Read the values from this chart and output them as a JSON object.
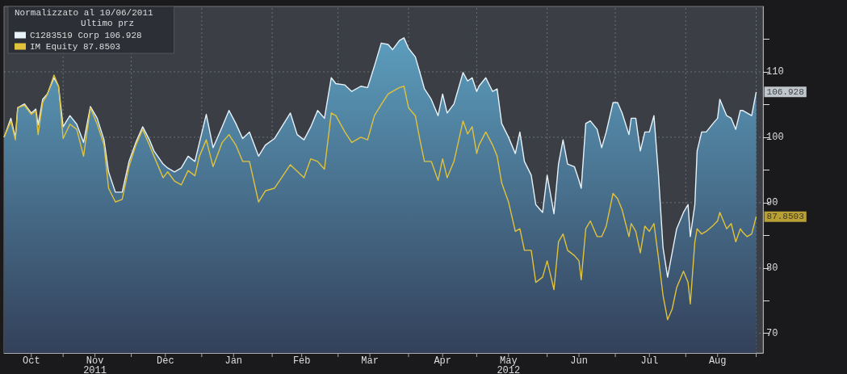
{
  "chart_data": {
    "type": "area",
    "legend_title": "Normalizzato al 10/06/2011",
    "subtitle": "Ultimo prz",
    "legend": "top left",
    "grid": true,
    "x": [
      "2011-10-06",
      "2011-10-09",
      "2011-10-11",
      "2011-10-12",
      "2011-10-15",
      "2011-10-18",
      "2011-10-20",
      "2011-10-21",
      "2011-10-23",
      "2011-10-25",
      "2011-10-28",
      "2011-10-30",
      "2011-11-01",
      "2011-11-04",
      "2011-11-07",
      "2011-11-10",
      "2011-11-13",
      "2011-11-16",
      "2011-11-19",
      "2011-11-21",
      "2011-11-24",
      "2011-11-27",
      "2011-11-30",
      "2011-12-03",
      "2011-12-06",
      "2011-12-09",
      "2011-12-11",
      "2011-12-15",
      "2011-12-17",
      "2011-12-20",
      "2011-12-23",
      "2011-12-26",
      "2011-12-29",
      "2011-12-31",
      "2012-01-03",
      "2012-01-06",
      "2012-01-10",
      "2012-01-13",
      "2012-01-16",
      "2012-01-19",
      "2012-01-22",
      "2012-01-26",
      "2012-01-29",
      "2012-02-02",
      "2012-02-09",
      "2012-02-12",
      "2012-02-15",
      "2012-02-18",
      "2012-02-21",
      "2012-02-24",
      "2012-02-27",
      "2012-02-29",
      "2012-03-04",
      "2012-03-07",
      "2012-03-11",
      "2012-03-14",
      "2012-03-17",
      "2012-03-20",
      "2012-03-23",
      "2012-03-25",
      "2012-03-28",
      "2012-03-30",
      "2012-04-01",
      "2012-04-04",
      "2012-04-06",
      "2012-04-08",
      "2012-04-11",
      "2012-04-14",
      "2012-04-16",
      "2012-04-18",
      "2012-04-21",
      "2012-04-25",
      "2012-04-27",
      "2012-04-29",
      "2012-05-01",
      "2012-05-02",
      "2012-05-05",
      "2012-05-08",
      "2012-05-10",
      "2012-05-12",
      "2012-05-15",
      "2012-05-18",
      "2012-05-20",
      "2012-05-22",
      "2012-05-25",
      "2012-05-27",
      "2012-05-30",
      "2012-06-01",
      "2012-06-04",
      "2012-06-06",
      "2012-06-08",
      "2012-06-10",
      "2012-06-13",
      "2012-06-15",
      "2012-06-16",
      "2012-06-18",
      "2012-06-20",
      "2012-06-23",
      "2012-06-25",
      "2012-06-27",
      "2012-06-30",
      "2012-07-02",
      "2012-07-04",
      "2012-07-07",
      "2012-07-08",
      "2012-07-10",
      "2012-07-12",
      "2012-07-14",
      "2012-07-16",
      "2012-07-18",
      "2012-07-20",
      "2012-07-22",
      "2012-07-24",
      "2012-07-26",
      "2012-07-28",
      "2012-07-31",
      "2012-08-02",
      "2012-08-03",
      "2012-08-05",
      "2012-08-06",
      "2012-08-08",
      "2012-08-10",
      "2012-08-13",
      "2012-08-15",
      "2012-08-16",
      "2012-08-19",
      "2012-08-21",
      "2012-08-23",
      "2012-08-25",
      "2012-08-26",
      "2012-08-28",
      "2012-08-30",
      "2012-09-01"
    ],
    "series": [
      {
        "name": "C1283519 Corp 106.928",
        "color": "#e8f2fa",
        "values": [
          100,
          102.9,
          100,
          104.5,
          105.1,
          103.7,
          104.3,
          101.9,
          105.8,
          106.6,
          109.1,
          107.8,
          101.6,
          103.3,
          102,
          99.2,
          104.7,
          102.9,
          99.6,
          94.7,
          91.6,
          91.6,
          96.3,
          99.2,
          101.6,
          99.6,
          97.9,
          95.9,
          95.3,
          94.7,
          95.3,
          97.1,
          96.3,
          99.2,
          103.5,
          98.4,
          101.6,
          104.1,
          102.1,
          99.8,
          100.8,
          97.1,
          98.8,
          99.8,
          103.7,
          100.4,
          99.6,
          101.6,
          104.1,
          102.9,
          109.1,
          108.2,
          108,
          107,
          107.8,
          107.6,
          110.9,
          114.4,
          114.2,
          113.4,
          114.8,
          115.2,
          113.6,
          112.3,
          109.9,
          107.4,
          105.8,
          103.3,
          106.6,
          103.7,
          105.1,
          109.9,
          108.6,
          109.1,
          107,
          107.8,
          109.1,
          107,
          107.4,
          102.1,
          100,
          97.5,
          100.8,
          96.3,
          94.2,
          89.7,
          88.5,
          94.2,
          88.3,
          95.9,
          99.6,
          95.9,
          95.5,
          93.4,
          92.2,
          102.1,
          102.5,
          101.2,
          98.4,
          100.8,
          105.3,
          105.3,
          103.7,
          100.4,
          102.9,
          102.9,
          97.9,
          100.8,
          100.8,
          103.3,
          94.2,
          83.1,
          78.6,
          82.3,
          86,
          88.5,
          89.7,
          84.8,
          89.7,
          97.9,
          100.8,
          100.8,
          102.1,
          102.9,
          105.8,
          103.3,
          102.9,
          101.2,
          104.1,
          104.1,
          103.7,
          103.3,
          106.928
        ]
      },
      {
        "name": "IM Equity 87.8503",
        "type": "line",
        "color": "#e0c23c",
        "values": [
          100,
          102.5,
          99.6,
          104.5,
          104.9,
          103.5,
          104,
          100.4,
          105.3,
          106.5,
          109.5,
          107.8,
          99.8,
          102,
          101.2,
          97.1,
          104.5,
          102,
          98.8,
          92.2,
          90.1,
          90.5,
          95.5,
          98.8,
          101.2,
          98.8,
          97.1,
          93.8,
          94.7,
          93.3,
          92.7,
          94.9,
          94.1,
          97.1,
          99.6,
          95.5,
          99.2,
          100.4,
          98.8,
          96.3,
          96.3,
          90.1,
          91.8,
          92.2,
          95.8,
          94.8,
          93.8,
          96.7,
          96.3,
          95.1,
          103.7,
          103.3,
          100.8,
          99.2,
          100,
          99.6,
          103.3,
          105,
          106.6,
          107,
          107.6,
          107.8,
          104.5,
          103.3,
          99.6,
          96.3,
          96.3,
          93.4,
          96.7,
          93.8,
          96.3,
          102.5,
          100.5,
          101.6,
          97.5,
          98.8,
          100.8,
          98.8,
          97.1,
          93,
          90.1,
          85.6,
          86,
          82.7,
          82.7,
          77.8,
          78.6,
          81.1,
          76.7,
          84,
          85.2,
          82.7,
          81.9,
          81.1,
          78.2,
          86,
          87.2,
          84.8,
          84.8,
          86.4,
          91.4,
          90.6,
          88.9,
          84.8,
          86.8,
          85.6,
          82.3,
          86.4,
          85.6,
          86.8,
          81.5,
          75.8,
          72.1,
          73.7,
          77,
          79.5,
          77.8,
          74.5,
          84,
          86,
          85.2,
          85.6,
          86.5,
          87.2,
          88.5,
          86,
          86.8,
          84,
          86,
          85.5,
          84.8,
          85.2,
          87.8503
        ]
      }
    ],
    "annotations": [
      {
        "text": "106.928",
        "x": "2012-09-01",
        "y": 106.928
      },
      {
        "text": "87.8503",
        "x": "2012-09-01",
        "y": 87.8503
      }
    ],
    "xlim": [
      "2011-10-06",
      "2012-09-04"
    ],
    "xticks": [
      {
        "value": "2011-10-18",
        "label": "Oct"
      },
      {
        "value": "2011-11-01",
        "label": null
      },
      {
        "value": "2011-11-15",
        "label": "Nov\n2011"
      },
      {
        "value": "2011-12-01",
        "label": null
      },
      {
        "value": "2011-12-16",
        "label": "Dec"
      },
      {
        "value": "2012-01-01",
        "label": null
      },
      {
        "value": "2012-01-15",
        "label": "Jan"
      },
      {
        "value": "2012-02-01",
        "label": null
      },
      {
        "value": "2012-02-14",
        "label": "Feb"
      },
      {
        "value": "2012-03-01",
        "label": null
      },
      {
        "value": "2012-03-15",
        "label": "Mar"
      },
      {
        "value": "2012-04-01",
        "label": null
      },
      {
        "value": "2012-04-16",
        "label": "Apr"
      },
      {
        "value": "2012-05-01",
        "label": null
      },
      {
        "value": "2012-05-15",
        "label": "May\n2012"
      },
      {
        "value": "2012-06-01",
        "label": null
      },
      {
        "value": "2012-06-15",
        "label": "Jun"
      },
      {
        "value": "2012-07-01",
        "label": null
      },
      {
        "value": "2012-07-16",
        "label": "Jul"
      },
      {
        "value": "2012-08-01",
        "label": null
      },
      {
        "value": "2012-08-15",
        "label": "Aug"
      },
      {
        "value": "2012-09-01",
        "label": null
      }
    ],
    "ylim": [
      67,
      120
    ],
    "yticks": [
      70,
      {
        "value": 75,
        "label": null
      },
      80,
      {
        "value": 85,
        "label": null
      },
      90,
      {
        "value": 95,
        "label": null
      },
      100,
      {
        "value": 105,
        "label": null
      },
      110,
      {
        "value": 115,
        "label": null
      }
    ]
  }
}
